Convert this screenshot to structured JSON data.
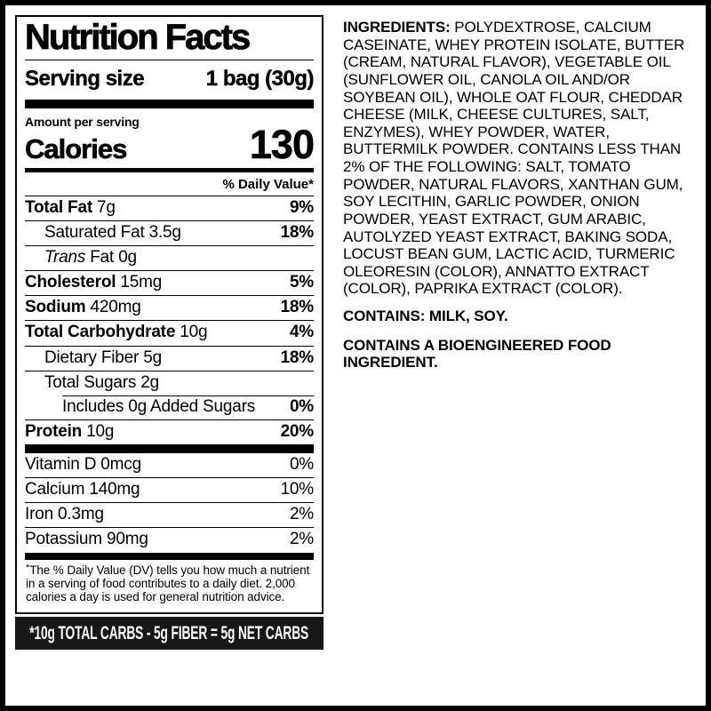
{
  "colors": {
    "ink": "#000000",
    "banner_bg": "#171715",
    "banner_text": "#ffffff",
    "page_bg": "#ffffff",
    "frame": "#000000"
  },
  "nutrition_label": {
    "title": "Nutrition Facts",
    "serving": {
      "label": "Serving size",
      "value": "1 bag (30g)"
    },
    "amount_per_serving": "Amount per serving",
    "calories": {
      "label": "Calories",
      "value": "130"
    },
    "daily_value_header": "% Daily Value*",
    "rows_main": [
      {
        "name": "Total Fat",
        "amount": "7g",
        "dv": "9%",
        "bold": true,
        "indent": 0,
        "dv_bold": true,
        "sep": "full"
      },
      {
        "name": "Saturated Fat",
        "amount": "3.5g",
        "dv": "18%",
        "bold": false,
        "indent": 1,
        "dv_bold": true,
        "sep": "full"
      },
      {
        "name": "Trans Fat",
        "amount": "0g",
        "dv": "",
        "bold": false,
        "indent": 1,
        "italic_first_word": true,
        "sep": "full"
      },
      {
        "name": "Cholesterol",
        "amount": "15mg",
        "dv": "5%",
        "bold": true,
        "indent": 0,
        "dv_bold": true,
        "sep": "full"
      },
      {
        "name": "Sodium",
        "amount": "420mg",
        "dv": "18%",
        "bold": true,
        "indent": 0,
        "dv_bold": true,
        "sep": "full"
      },
      {
        "name": "Total Carbohydrate",
        "amount": "10g",
        "dv": "4%",
        "bold": true,
        "indent": 0,
        "dv_bold": true,
        "sep": "full"
      },
      {
        "name": "Dietary Fiber",
        "amount": "5g",
        "dv": "18%",
        "bold": false,
        "indent": 1,
        "dv_bold": true,
        "sep": "full"
      },
      {
        "name": "Total Sugars",
        "amount": "2g",
        "dv": "",
        "bold": false,
        "indent": 1,
        "sep": "full"
      },
      {
        "name": "Includes 0g Added Sugars",
        "amount": "",
        "dv": "0%",
        "bold": false,
        "indent": 2,
        "dv_bold": true,
        "sep": "indent"
      },
      {
        "name": "Protein",
        "amount": "10g",
        "dv": "20%",
        "bold": true,
        "indent": 0,
        "dv_bold": true,
        "sep": "full"
      }
    ],
    "rows_vitamins": [
      {
        "name": "Vitamin D",
        "amount": "0mcg",
        "dv": "0%",
        "bold": false,
        "indent": 0,
        "dv_bold": false,
        "sep": "none"
      },
      {
        "name": "Calcium",
        "amount": "140mg",
        "dv": "10%",
        "bold": false,
        "indent": 0,
        "dv_bold": false,
        "sep": "full"
      },
      {
        "name": "Iron",
        "amount": "0.3mg",
        "dv": "2%",
        "bold": false,
        "indent": 0,
        "dv_bold": false,
        "sep": "full"
      },
      {
        "name": "Potassium",
        "amount": "90mg",
        "dv": "2%",
        "bold": false,
        "indent": 0,
        "dv_bold": false,
        "sep": "full"
      }
    ],
    "footnote": {
      "marker": "*",
      "text": "The % Daily Value (DV) tells you how much a nutrient in a serving of food contributes to a daily diet. 2,000 calories a day is used for general nutrition advice."
    },
    "banner": "*10g TOTAL CARBS - 5g FIBER = 5g NET CARBS"
  },
  "ingredients_panel": {
    "heading": "INGREDIENTS:",
    "list": "POLYDEXTROSE, CALCIUM CASEINATE, WHEY PROTEIN ISOLATE, BUTTER (CREAM, NATURAL FLAVOR), VEGETABLE OIL (SUNFLOWER OIL, CANOLA OIL AND/OR SOYBEAN OIL), WHOLE OAT FLOUR, CHEDDAR CHEESE (MILK, CHEESE CULTURES, SALT, ENZYMES), WHEY POWDER, WATER, BUTTERMILK POWDER. CONTAINS LESS THAN 2% OF THE FOLLOWING: SALT, TOMATO POWDER, NATURAL FLAVORS, XANTHAN GUM, SOY LECITHIN, GARLIC POWDER, ONION POWDER, YEAST EXTRACT, GUM ARABIC, AUTOLYZED YEAST EXTRACT, BAKING SODA, LOCUST BEAN GUM, LACTIC ACID, TURMERIC OLEORESIN (COLOR), ANNATTO EXTRACT (COLOR), PAPRIKA EXTRACT (COLOR).",
    "allergen_statement": "CONTAINS: MILK, SOY.",
    "bioengineered_statement": "CONTAINS A BIOENGINEERED FOOD INGREDIENT."
  }
}
